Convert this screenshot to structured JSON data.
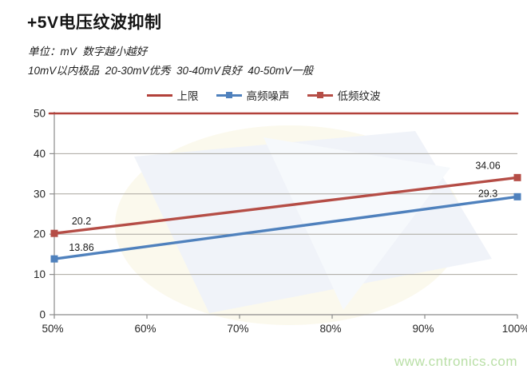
{
  "header": {
    "subtitle_unit": "单位：mV  数字越小越好",
    "subtitle_grades": "10mV以内极品  20-30mV优秀  30-40mV良好  40-50mV一般"
  },
  "watermark": {
    "text": "www.cntronics.com",
    "color": "#b9dfa6"
  },
  "chart_data": {
    "type": "line",
    "title": "+5V电压纹波抑制",
    "xlabel": "",
    "ylabel": "",
    "unit": "mV",
    "xlim": [
      50,
      100
    ],
    "ylim": [
      0,
      50
    ],
    "x_tick_values": [
      50,
      60,
      70,
      80,
      90,
      100
    ],
    "x_tick_labels": [
      "50%",
      "60%",
      "70%",
      "80%",
      "90%",
      "100%"
    ],
    "y_tick_values": [
      0,
      10,
      20,
      30,
      40,
      50
    ],
    "grid": true,
    "legend_position": "top",
    "series": [
      {
        "name": "上限",
        "color": "#b2413a",
        "marker": "none",
        "x": [
          50,
          100
        ],
        "y": [
          50,
          50
        ],
        "show_labels": false
      },
      {
        "name": "高频噪声",
        "color": "#4f81bd",
        "marker": "square",
        "x": [
          50,
          100
        ],
        "y": [
          13.86,
          29.3
        ],
        "show_labels": true
      },
      {
        "name": "低频纹波",
        "color": "#b54d46",
        "marker": "square",
        "x": [
          50,
          100
        ],
        "y": [
          20.2,
          34.06
        ],
        "show_labels": true
      }
    ],
    "style": {
      "grid_color": "#a9a69e",
      "axis_color": "#8c8c8c",
      "tick_label_color": "#262626",
      "data_label_color": "#1a1a1a"
    }
  }
}
